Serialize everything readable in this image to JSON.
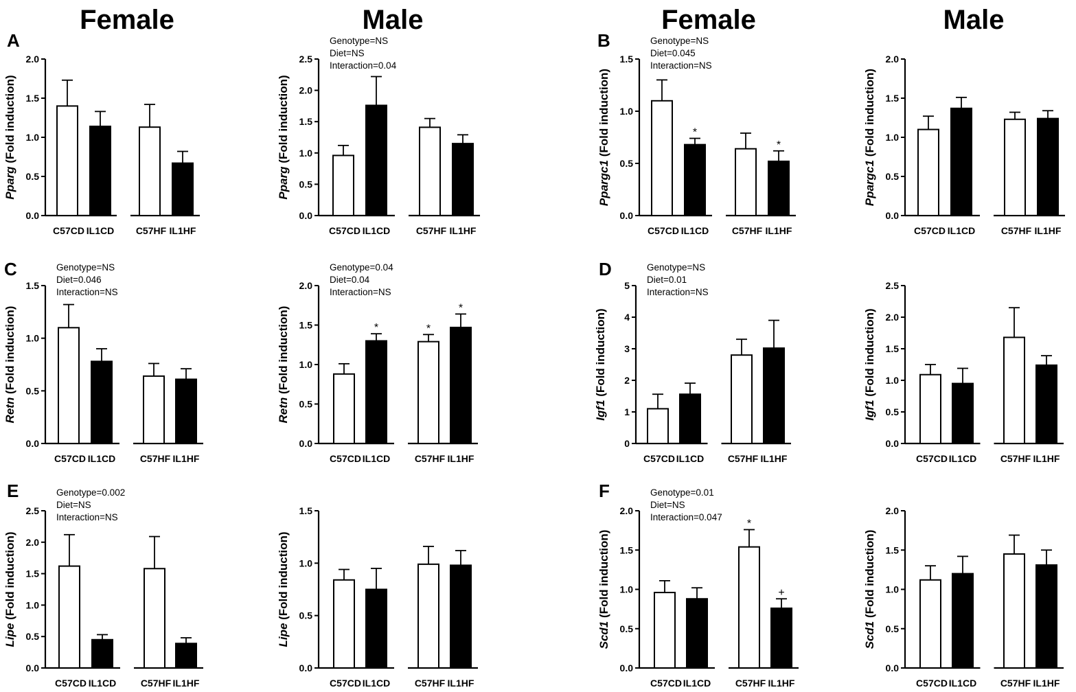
{
  "column_titles": [
    "Female",
    "Male",
    "Female",
    "Male"
  ],
  "panel_letters": [
    "A",
    "B",
    "C",
    "D",
    "E",
    "F"
  ],
  "categories": [
    "C57CD",
    "IL1CD",
    "C57HF",
    "IL1HF"
  ],
  "colors": {
    "open_bar": "#ffffff",
    "filled_bar": "#000000",
    "stroke": "#000000"
  },
  "chart_data": [
    {
      "type": "bar",
      "panel": "A",
      "sex": "Female",
      "gene": "Pparg",
      "ylabel_suffix": " (Fold induction)",
      "categories": [
        "C57CD",
        "IL1CD",
        "C57HF",
        "IL1HF"
      ],
      "values": [
        1.4,
        1.14,
        1.13,
        0.67
      ],
      "errors": [
        0.33,
        0.19,
        0.29,
        0.15
      ],
      "ylim": [
        0,
        2.0
      ],
      "yticks": [
        "0.0",
        "0.5",
        "1.0",
        "1.5",
        "2.0"
      ],
      "stats": [],
      "significance": [
        "",
        "",
        "",
        ""
      ]
    },
    {
      "type": "bar",
      "panel": "A",
      "sex": "Male",
      "gene": "Pparg",
      "ylabel_suffix": " (Fold induction)",
      "categories": [
        "C57CD",
        "IL1CD",
        "C57HF",
        "IL1HF"
      ],
      "values": [
        0.96,
        1.76,
        1.41,
        1.15
      ],
      "errors": [
        0.16,
        0.46,
        0.14,
        0.14
      ],
      "ylim": [
        0,
        2.5
      ],
      "yticks": [
        "0.0",
        "0.5",
        "1.0",
        "1.5",
        "2.0",
        "2.5"
      ],
      "stats": [
        "Genotype=NS",
        "Diet=NS",
        "Interaction=0.04"
      ],
      "significance": [
        "",
        "",
        "",
        ""
      ]
    },
    {
      "type": "bar",
      "panel": "B",
      "sex": "Female",
      "gene": "Ppargc1",
      "ylabel_suffix": " (Fold induction)",
      "categories": [
        "C57CD",
        "IL1CD",
        "C57HF",
        "IL1HF"
      ],
      "values": [
        1.1,
        0.68,
        0.64,
        0.52
      ],
      "errors": [
        0.2,
        0.06,
        0.15,
        0.1
      ],
      "ylim": [
        0,
        1.5
      ],
      "yticks": [
        "0.0",
        "0.5",
        "1.0",
        "1.5"
      ],
      "stats": [
        "Genotype=NS",
        "Diet=0.045",
        "Interaction=NS"
      ],
      "significance": [
        "",
        "*",
        "",
        "*"
      ]
    },
    {
      "type": "bar",
      "panel": "B",
      "sex": "Male",
      "gene": "Ppargc1",
      "ylabel_suffix": " (Fold induction)",
      "categories": [
        "C57CD",
        "IL1CD",
        "C57HF",
        "IL1HF"
      ],
      "values": [
        1.1,
        1.37,
        1.23,
        1.24
      ],
      "errors": [
        0.17,
        0.14,
        0.09,
        0.1
      ],
      "ylim": [
        0,
        2.0
      ],
      "yticks": [
        "0.0",
        "0.5",
        "1.0",
        "1.5",
        "2.0"
      ],
      "stats": [],
      "significance": [
        "",
        "",
        "",
        ""
      ]
    },
    {
      "type": "bar",
      "panel": "C",
      "sex": "Female",
      "gene": "Retn",
      "ylabel_suffix": " (Fold induction)",
      "categories": [
        "C57CD",
        "IL1CD",
        "C57HF",
        "IL1HF"
      ],
      "values": [
        1.1,
        0.78,
        0.64,
        0.61
      ],
      "errors": [
        0.22,
        0.12,
        0.12,
        0.1
      ],
      "ylim": [
        0,
        1.5
      ],
      "yticks": [
        "0.0",
        "0.5",
        "1.0",
        "1.5"
      ],
      "stats": [
        "Genotype=NS",
        "Diet=0.046",
        "Interaction=NS"
      ],
      "significance": [
        "",
        "",
        "",
        ""
      ]
    },
    {
      "type": "bar",
      "panel": "C",
      "sex": "Male",
      "gene": "Retn",
      "ylabel_suffix": " (Fold induction)",
      "categories": [
        "C57CD",
        "IL1CD",
        "C57HF",
        "IL1HF"
      ],
      "values": [
        0.88,
        1.3,
        1.29,
        1.47
      ],
      "errors": [
        0.13,
        0.09,
        0.09,
        0.17
      ],
      "ylim": [
        0,
        2.0
      ],
      "yticks": [
        "0.0",
        "0.5",
        "1.0",
        "1.5",
        "2.0"
      ],
      "stats": [
        "Genotype=0.04",
        "Diet=0.04",
        "Interaction=NS"
      ],
      "significance": [
        "",
        "*",
        "*",
        "*"
      ]
    },
    {
      "type": "bar",
      "panel": "D",
      "sex": "Female",
      "gene": "Igf1",
      "ylabel_suffix": " (Fold induction)",
      "categories": [
        "C57CD",
        "IL1CD",
        "C57HF",
        "IL1HF"
      ],
      "values": [
        1.1,
        1.56,
        2.8,
        3.02
      ],
      "errors": [
        0.46,
        0.35,
        0.5,
        0.88
      ],
      "ylim": [
        0,
        5
      ],
      "yticks": [
        "0",
        "1",
        "2",
        "3",
        "4",
        "5"
      ],
      "stats": [
        "Genotype=NS",
        "Diet=0.01",
        "Interaction=NS"
      ],
      "significance": [
        "",
        "",
        "",
        ""
      ]
    },
    {
      "type": "bar",
      "panel": "D",
      "sex": "Male",
      "gene": "Igf1",
      "ylabel_suffix": " (Fold induction)",
      "categories": [
        "C57CD",
        "IL1CD",
        "C57HF",
        "IL1HF"
      ],
      "values": [
        1.09,
        0.95,
        1.68,
        1.24
      ],
      "errors": [
        0.16,
        0.24,
        0.47,
        0.15
      ],
      "ylim": [
        0,
        2.5
      ],
      "yticks": [
        "0.0",
        "0.5",
        "1.0",
        "1.5",
        "2.0",
        "2.5"
      ],
      "stats": [],
      "significance": [
        "",
        "",
        "",
        ""
      ]
    },
    {
      "type": "bar",
      "panel": "E",
      "sex": "Female",
      "gene": "Lipe",
      "ylabel_suffix": " (Fold induction)",
      "categories": [
        "C57CD",
        "IL1CD",
        "C57HF",
        "IL1HF"
      ],
      "values": [
        1.62,
        0.45,
        1.58,
        0.39
      ],
      "errors": [
        0.5,
        0.08,
        0.51,
        0.09
      ],
      "ylim": [
        0,
        2.5
      ],
      "yticks": [
        "0.0",
        "0.5",
        "1.0",
        "1.5",
        "2.0",
        "2.5"
      ],
      "stats": [
        "Genotype=0.002",
        "Diet=NS",
        "Interaction=NS"
      ],
      "significance": [
        "",
        "",
        "",
        ""
      ]
    },
    {
      "type": "bar",
      "panel": "E",
      "sex": "Male",
      "gene": "Lipe",
      "ylabel_suffix": " (Fold induction)",
      "categories": [
        "C57CD",
        "IL1CD",
        "C57HF",
        "IL1HF"
      ],
      "values": [
        0.84,
        0.75,
        0.99,
        0.98
      ],
      "errors": [
        0.1,
        0.2,
        0.17,
        0.14
      ],
      "ylim": [
        0,
        1.5
      ],
      "yticks": [
        "0.0",
        "0.5",
        "1.0",
        "1.5"
      ],
      "stats": [],
      "significance": [
        "",
        "",
        "",
        ""
      ]
    },
    {
      "type": "bar",
      "panel": "F",
      "sex": "Female",
      "gene": "Scd1",
      "ylabel_suffix": " (Fold induction)",
      "categories": [
        "C57CD",
        "IL1CD",
        "C57HF",
        "IL1HF"
      ],
      "values": [
        0.96,
        0.88,
        1.54,
        0.76
      ],
      "errors": [
        0.15,
        0.14,
        0.22,
        0.12
      ],
      "ylim": [
        0,
        2.0
      ],
      "yticks": [
        "0.0",
        "0.5",
        "1.0",
        "1.5",
        "2.0"
      ],
      "stats": [
        "Genotype=0.01",
        "Diet=NS",
        "Interaction=0.047"
      ],
      "significance": [
        "",
        "",
        "*",
        "+"
      ]
    },
    {
      "type": "bar",
      "panel": "F",
      "sex": "Male",
      "gene": "Scd1",
      "ylabel_suffix": " (Fold induction)",
      "categories": [
        "C57CD",
        "IL1CD",
        "C57HF",
        "IL1HF"
      ],
      "values": [
        1.12,
        1.2,
        1.45,
        1.31
      ],
      "errors": [
        0.18,
        0.22,
        0.24,
        0.19
      ],
      "ylim": [
        0,
        2.0
      ],
      "yticks": [
        "0.0",
        "0.5",
        "1.0",
        "1.5",
        "2.0"
      ],
      "stats": [],
      "significance": [
        "",
        "",
        "",
        ""
      ]
    }
  ]
}
